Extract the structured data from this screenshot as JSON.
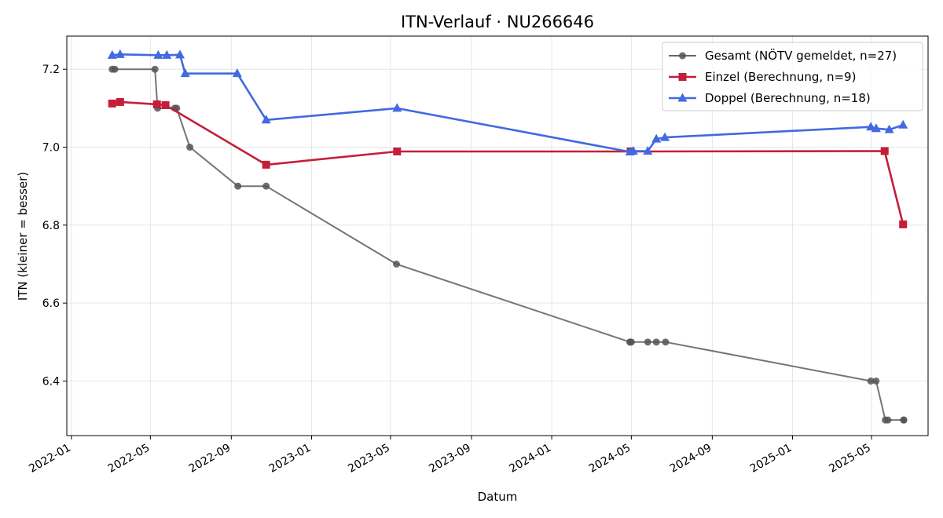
{
  "chart_data": {
    "type": "line",
    "title": "ITN-Verlauf · NU266646",
    "xlabel": "Datum",
    "ylabel": "ITN  (kleiner = besser)",
    "xlim": [
      "2021-12-25",
      "2025-07-26"
    ],
    "ylim": [
      6.26,
      7.285
    ],
    "x_ticks": [
      "2022-01-01",
      "2022-05-01",
      "2022-09-01",
      "2023-01-01",
      "2023-05-01",
      "2023-09-01",
      "2024-01-01",
      "2024-05-01",
      "2024-09-01",
      "2025-01-01",
      "2025-05-01"
    ],
    "x_tick_labels": [
      "2022-01",
      "2022-05",
      "2022-09",
      "2023-01",
      "2023-05",
      "2023-09",
      "2024-01",
      "2024-05",
      "2024-09",
      "2025-01",
      "2025-05"
    ],
    "y_ticks": [
      6.4,
      6.6,
      6.8,
      7.0,
      7.2
    ],
    "y_tick_labels": [
      "6.4",
      "6.6",
      "6.8",
      "7.0",
      "7.2"
    ],
    "grid": true,
    "legend_position": "top-right",
    "series": [
      {
        "name": "Gesamt (NÖTV gemeldet, n=27)",
        "color": "#666666",
        "marker": "circle",
        "x": [
          "2022-03-04",
          "2022-03-08",
          "2022-05-08",
          "2022-05-12",
          "2022-06-07",
          "2022-06-10",
          "2022-06-30",
          "2022-09-11",
          "2022-10-24",
          "2023-05-10",
          "2024-04-29",
          "2024-04-29",
          "2024-05-01",
          "2024-05-26",
          "2024-06-08",
          "2024-06-22",
          "2025-04-30",
          "2025-05-08",
          "2025-05-22",
          "2025-05-26",
          "2025-06-19",
          "2025-06-19"
        ],
        "y": [
          7.2,
          7.2,
          7.2,
          7.1,
          7.1,
          7.1,
          7.0,
          6.9,
          6.9,
          6.7,
          6.5,
          6.5,
          6.5,
          6.5,
          6.5,
          6.5,
          6.4,
          6.4,
          6.3,
          6.3,
          6.3,
          6.3
        ]
      },
      {
        "name": "Einzel (Berechnung, n=9)",
        "color": "#c41e3a",
        "marker": "square",
        "x": [
          "2022-03-04",
          "2022-03-16",
          "2022-05-11",
          "2022-05-24",
          "2022-10-24",
          "2023-05-11",
          "2024-04-30",
          "2025-05-21",
          "2025-06-18"
        ],
        "y": [
          7.112,
          7.116,
          7.11,
          7.108,
          6.955,
          6.989,
          6.989,
          6.99,
          6.802
        ]
      },
      {
        "name": "Doppel (Berechnung, n=18)",
        "color": "#4169e1",
        "marker": "triangle",
        "x": [
          "2022-03-04",
          "2022-03-16",
          "2022-05-13",
          "2022-05-26",
          "2022-06-15",
          "2022-06-23",
          "2022-09-10",
          "2022-10-24",
          "2023-05-11",
          "2024-04-29",
          "2024-05-04",
          "2024-05-26",
          "2024-06-08",
          "2024-06-21",
          "2025-04-30",
          "2025-05-08",
          "2025-05-28",
          "2025-06-18"
        ],
        "y": [
          7.236,
          7.238,
          7.236,
          7.236,
          7.237,
          7.189,
          7.189,
          7.07,
          7.1,
          6.988,
          6.99,
          6.99,
          7.021,
          7.025,
          7.052,
          7.048,
          7.045,
          7.057
        ]
      }
    ]
  }
}
